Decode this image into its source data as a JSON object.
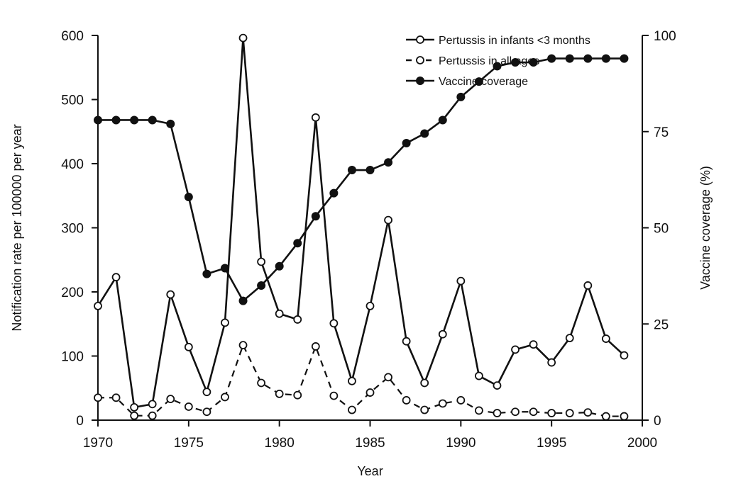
{
  "chart_data": {
    "type": "line",
    "xlabel": "Year",
    "ylabel_left": "Notification rate per 100000 per year",
    "ylabel_right": "Vaccine coverage (%)",
    "xlim": [
      1970,
      2000
    ],
    "ylim_left": [
      0,
      600
    ],
    "ylim_right": [
      0,
      100
    ],
    "x_ticks": [
      1970,
      1975,
      1980,
      1985,
      1990,
      1995,
      2000
    ],
    "y_left_ticks": [
      0,
      100,
      200,
      300,
      400,
      500,
      600
    ],
    "y_right_ticks": [
      0,
      25,
      50,
      75,
      100
    ],
    "grid": false,
    "legend_position": "top-right",
    "series": [
      {
        "name": "Pertussis in infants <3 months",
        "axis": "left",
        "line_style": "solid",
        "marker": "open-circle",
        "x": [
          1970,
          1971,
          1972,
          1973,
          1974,
          1975,
          1976,
          1977,
          1978,
          1979,
          1980,
          1981,
          1982,
          1983,
          1984,
          1985,
          1986,
          1987,
          1988,
          1989,
          1990,
          1991,
          1992,
          1993,
          1994,
          1995,
          1996,
          1997,
          1998,
          1999
        ],
        "values": [
          178,
          223,
          20,
          25,
          196,
          114,
          44,
          152,
          596,
          247,
          166,
          157,
          472,
          151,
          61,
          178,
          312,
          123,
          58,
          134,
          217,
          69,
          54,
          110,
          118,
          90,
          128,
          210,
          127,
          101
        ]
      },
      {
        "name": "Pertussis in all ages",
        "axis": "left",
        "line_style": "dashed",
        "marker": "open-circle",
        "x": [
          1970,
          1971,
          1972,
          1973,
          1974,
          1975,
          1976,
          1977,
          1978,
          1979,
          1980,
          1981,
          1982,
          1983,
          1984,
          1985,
          1986,
          1987,
          1988,
          1989,
          1990,
          1991,
          1992,
          1993,
          1994,
          1995,
          1996,
          1997,
          1998,
          1999
        ],
        "values": [
          35,
          35,
          7,
          7,
          33,
          21,
          13,
          36,
          117,
          58,
          41,
          39,
          115,
          38,
          16,
          43,
          67,
          31,
          16,
          26,
          31,
          15,
          11,
          13,
          13,
          11,
          11,
          12,
          6,
          6
        ]
      },
      {
        "name": "Vaccine coverage",
        "axis": "right",
        "line_style": "solid",
        "marker": "filled-circle",
        "x": [
          1970,
          1971,
          1972,
          1973,
          1974,
          1975,
          1976,
          1977,
          1978,
          1979,
          1980,
          1981,
          1982,
          1983,
          1984,
          1985,
          1986,
          1987,
          1988,
          1989,
          1990,
          1991,
          1992,
          1993,
          1994,
          1995,
          1996,
          1997,
          1998,
          1999
        ],
        "values": [
          78,
          78,
          78,
          78,
          77,
          58,
          38,
          39.5,
          31,
          35,
          40,
          46,
          53,
          59,
          65,
          65,
          67,
          72,
          74.5,
          78,
          84,
          88,
          92,
          93,
          93,
          94,
          94,
          94,
          94,
          94
        ]
      }
    ]
  }
}
